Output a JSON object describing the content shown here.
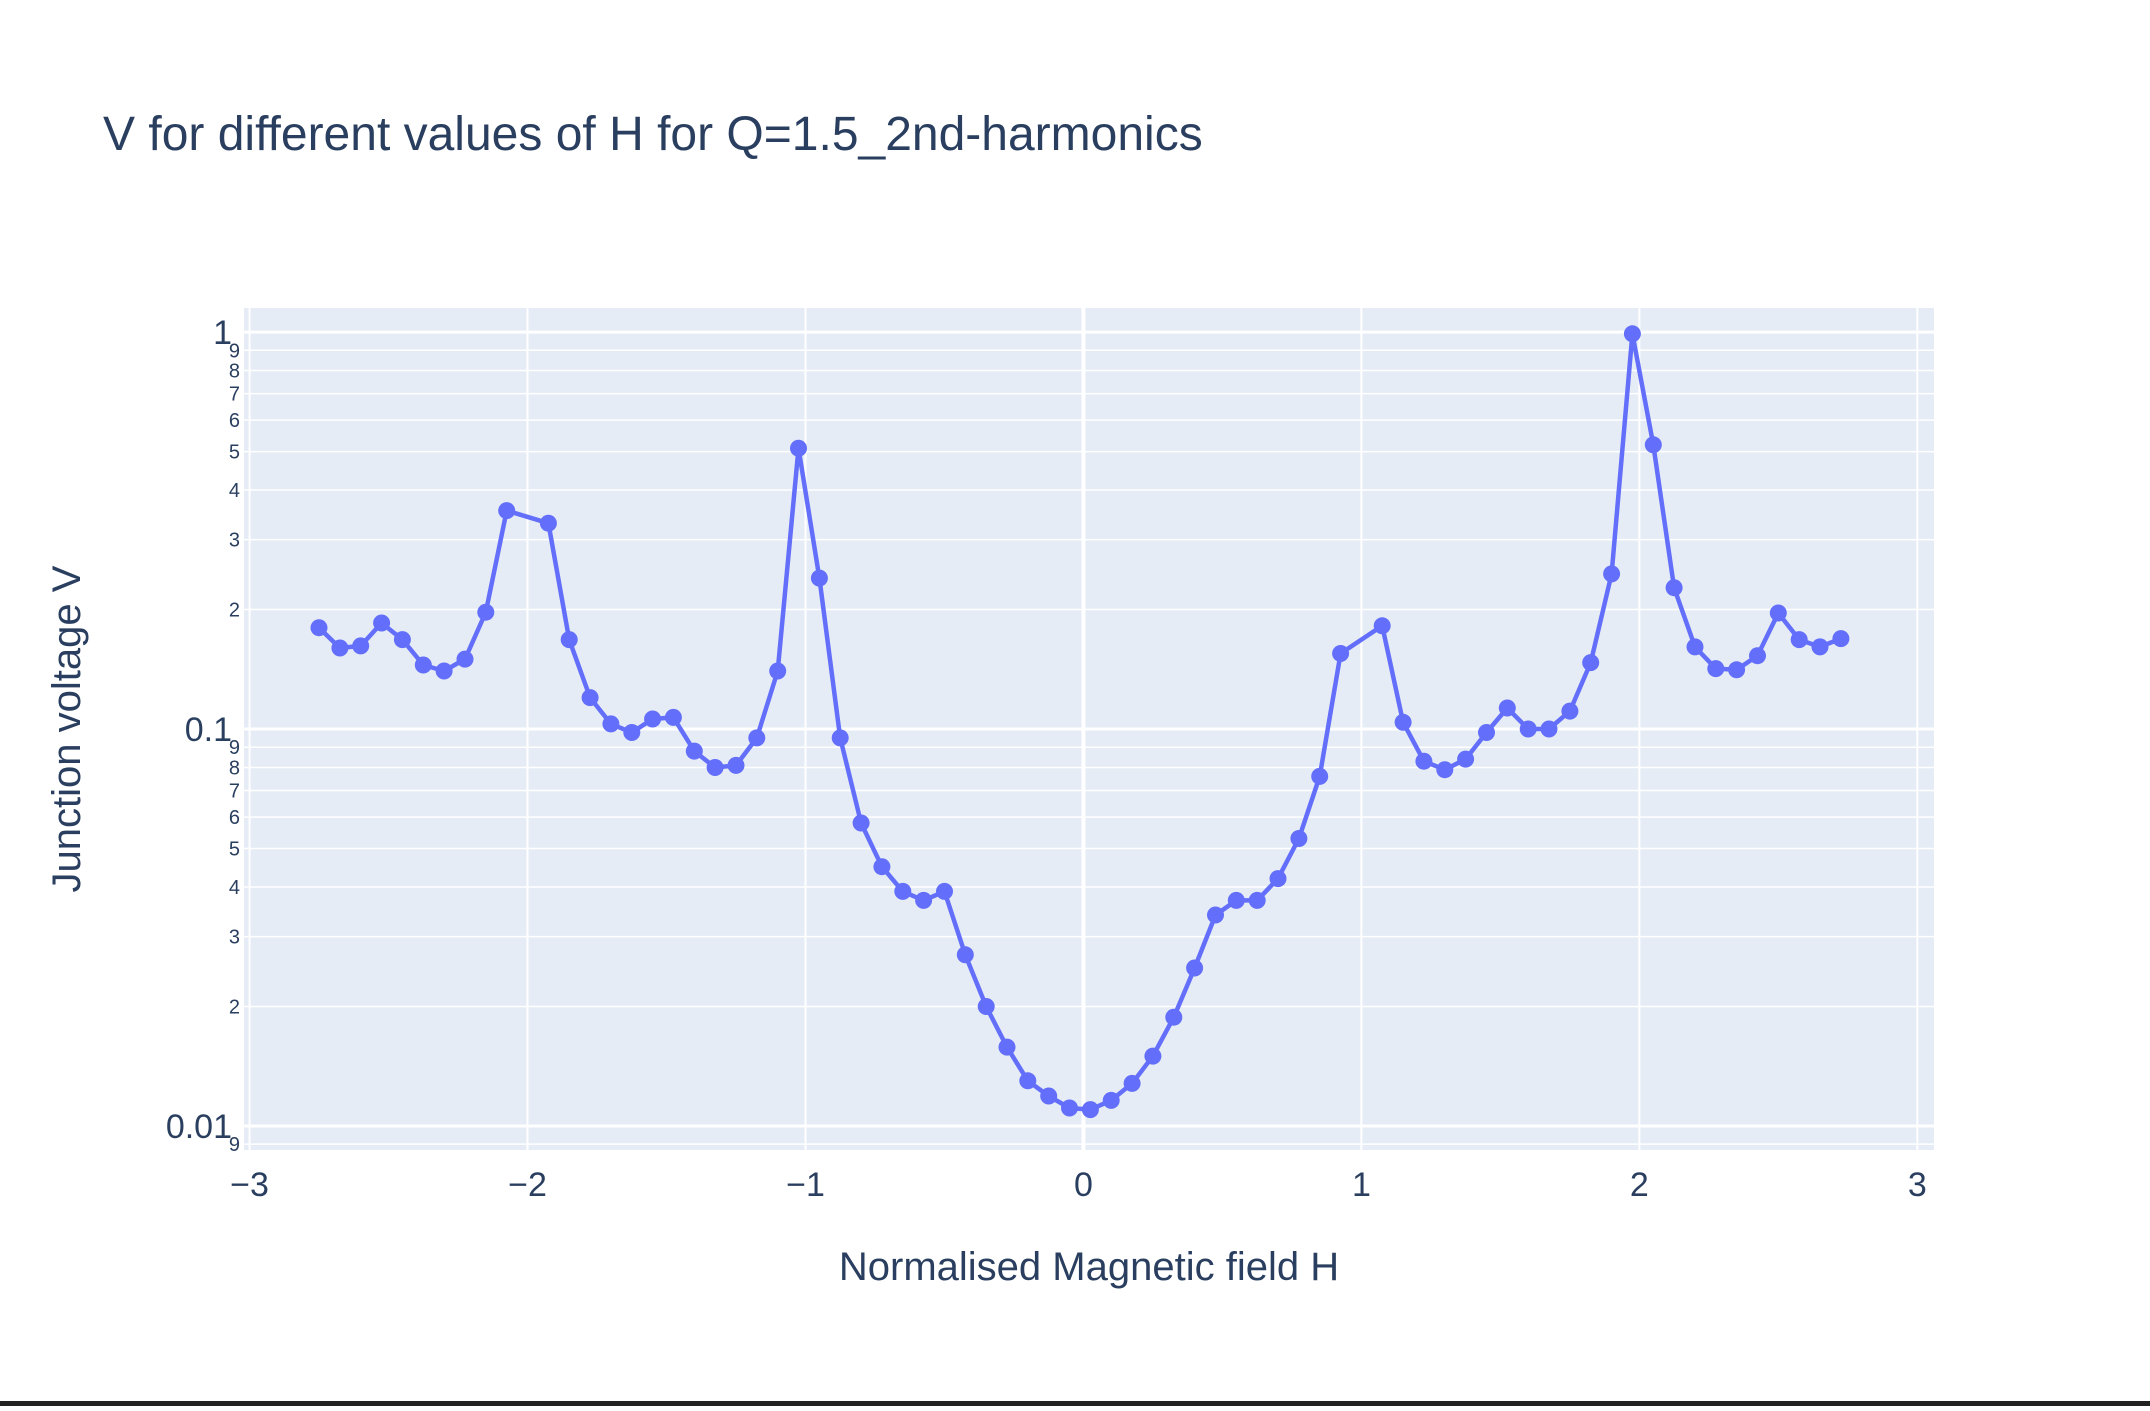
{
  "colors": {
    "plot_bg": "#e5ecf6",
    "grid": "#ffffff",
    "series": "#636efa",
    "text": "#2a3f5f"
  },
  "chart_data": {
    "type": "line",
    "mode": "lines+markers",
    "title": "V for different values of H for Q=1.5_2nd-harmonics",
    "xlabel": "Normalised Magnetic field H",
    "ylabel": "Junction voltage V",
    "xlim": [
      -3.02,
      3.06
    ],
    "ylim": [
      0.0087,
      1.15
    ],
    "yscale": "log",
    "grid": true,
    "legend": "none",
    "x_ticks": [
      -3,
      -2,
      -1,
      0,
      1,
      2,
      3
    ],
    "x_tick_labels": [
      "−3",
      "−2",
      "−1",
      "0",
      "1",
      "2",
      "3"
    ],
    "y_major_ticks": [
      0.01,
      0.1,
      1
    ],
    "y_major_labels": [
      "0.01",
      "0.1",
      "1"
    ],
    "y_minor_ticks": [
      0.009,
      0.02,
      0.03,
      0.04,
      0.05,
      0.06,
      0.07,
      0.08,
      0.09,
      0.2,
      0.3,
      0.4,
      0.5,
      0.6,
      0.7,
      0.8,
      0.9
    ],
    "y_minor_labels": [
      "9",
      "2",
      "3",
      "4",
      "5",
      "6",
      "7",
      "8",
      "9",
      "2",
      "3",
      "4",
      "5",
      "6",
      "7",
      "8",
      "9"
    ],
    "series": [
      {
        "x": [
          -2.75,
          -2.675,
          -2.6,
          -2.525,
          -2.45,
          -2.375,
          -2.3,
          -2.225,
          -2.15,
          -2.075,
          -1.925,
          -1.85,
          -1.775,
          -1.7,
          -1.625,
          -1.55,
          -1.475,
          -1.4,
          -1.325,
          -1.25,
          -1.175,
          -1.1,
          -1.025,
          -0.95,
          -0.875,
          -0.8,
          -0.725,
          -0.65,
          -0.575,
          -0.5,
          -0.425,
          -0.35,
          -0.275,
          -0.2,
          -0.125,
          -0.05,
          0.025,
          0.1,
          0.175,
          0.25,
          0.325,
          0.4,
          0.475,
          0.55,
          0.625,
          0.7,
          0.775,
          0.85,
          0.925,
          1.075,
          1.15,
          1.225,
          1.3,
          1.375,
          1.45,
          1.525,
          1.6,
          1.675,
          1.75,
          1.825,
          1.9,
          1.975,
          2.05,
          2.125,
          2.2,
          2.275,
          2.35,
          2.425,
          2.5,
          2.575,
          2.65,
          2.725
        ],
        "y": [
          0.18,
          0.16,
          0.162,
          0.185,
          0.168,
          0.145,
          0.14,
          0.15,
          0.197,
          0.355,
          0.33,
          0.168,
          0.12,
          0.103,
          0.098,
          0.106,
          0.107,
          0.088,
          0.08,
          0.081,
          0.095,
          0.14,
          0.51,
          0.24,
          0.095,
          0.058,
          0.045,
          0.039,
          0.037,
          0.039,
          0.027,
          0.02,
          0.0158,
          0.013,
          0.0119,
          0.0111,
          0.011,
          0.0116,
          0.0128,
          0.015,
          0.0188,
          0.025,
          0.034,
          0.037,
          0.037,
          0.042,
          0.053,
          0.076,
          0.155,
          0.182,
          0.104,
          0.083,
          0.079,
          0.084,
          0.098,
          0.113,
          0.1,
          0.1,
          0.111,
          0.147,
          0.246,
          0.99,
          0.52,
          0.227,
          0.161,
          0.142,
          0.141,
          0.153,
          0.196,
          0.168,
          0.161,
          0.169
        ]
      }
    ]
  }
}
